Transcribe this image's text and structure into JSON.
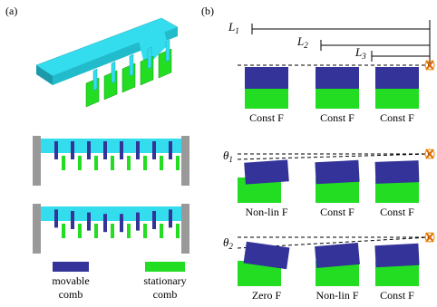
{
  "panel_a": {
    "label": "(a)",
    "legend": [
      [
        "movable",
        "comb"
      ],
      [
        "stationary",
        "comb"
      ]
    ]
  },
  "panel_b": {
    "label": "(b)",
    "lengths": [
      {
        "symbol": "L",
        "sub": "1"
      },
      {
        "symbol": "L",
        "sub": "2"
      },
      {
        "symbol": "L",
        "sub": "3"
      }
    ],
    "angles": [
      {
        "symbol": "θ",
        "sub": "1"
      },
      {
        "symbol": "θ",
        "sub": "2"
      }
    ],
    "rows": [
      [
        "Const F",
        "Const F",
        "Const F"
      ],
      [
        "Non-lin F",
        "Const F",
        "Const F"
      ],
      [
        "Zero F",
        "Non-lin F",
        "Const F"
      ]
    ]
  }
}
